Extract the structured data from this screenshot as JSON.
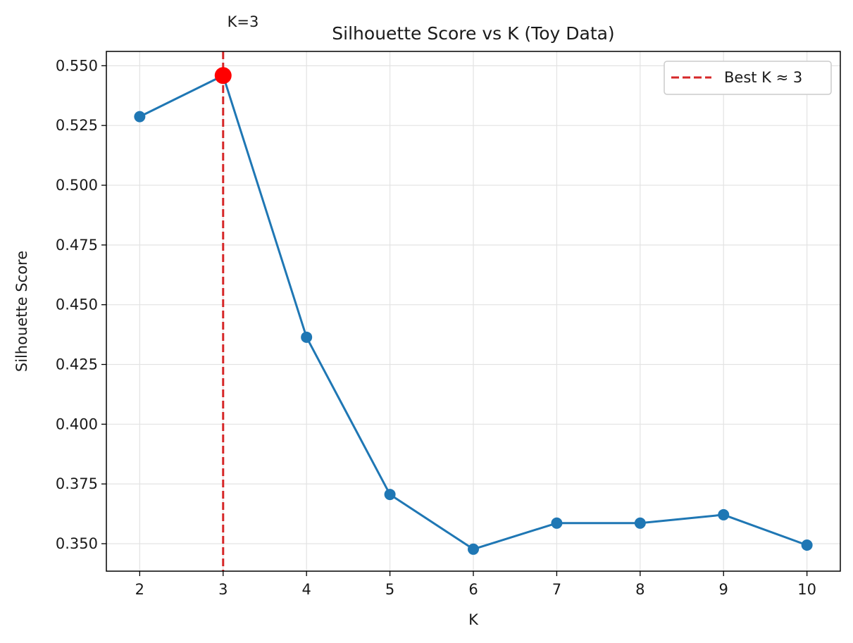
{
  "chart_data": {
    "type": "line",
    "title": "Silhouette Score vs K (Toy Data)",
    "xlabel": "K",
    "ylabel": "Silhouette Score",
    "x": [
      2,
      3,
      4,
      5,
      6,
      7,
      8,
      9,
      10
    ],
    "x_ticks": [
      "2",
      "3",
      "4",
      "5",
      "6",
      "7",
      "8",
      "9",
      "10"
    ],
    "xlim": [
      1.6,
      10.4
    ],
    "ylim": [
      0.3385,
      0.556
    ],
    "y_ticks": [
      "0.350",
      "0.375",
      "0.400",
      "0.425",
      "0.450",
      "0.475",
      "0.500",
      "0.525",
      "0.550"
    ],
    "y_tick_values": [
      0.35,
      0.375,
      0.4,
      0.425,
      0.45,
      0.475,
      0.5,
      0.525,
      0.55
    ],
    "grid": true,
    "series": [
      {
        "values": [
          0.5287,
          0.5459,
          0.4364,
          0.3706,
          0.3477,
          0.3586,
          0.3586,
          0.3621,
          0.3494
        ],
        "color": "#1f77b4",
        "marker": "circle"
      }
    ],
    "best": {
      "x": 3,
      "y": 0.5459,
      "marker_color": "#ff0000",
      "line_color": "#d62728",
      "line_style": "dashed",
      "annotation": "K=3"
    },
    "legend": {
      "position": "top-right",
      "entries": [
        {
          "label": "Best K ≈ 3",
          "color": "#d62728",
          "style": "dashed"
        }
      ]
    }
  }
}
